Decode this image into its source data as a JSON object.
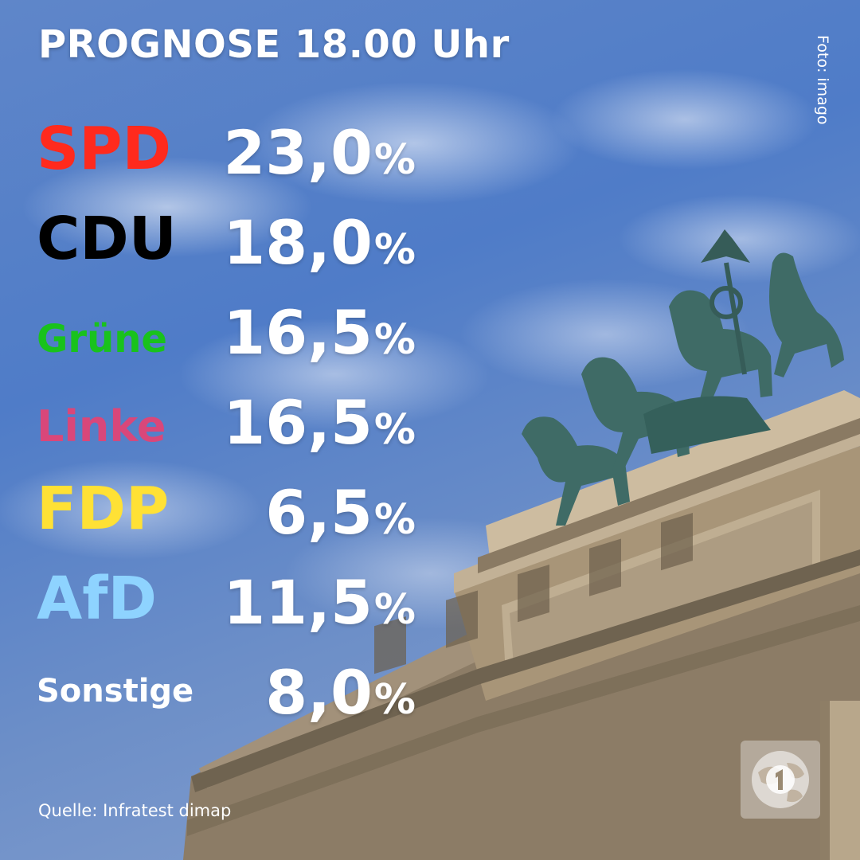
{
  "header": {
    "title": "PROGNOSE 18.00 Uhr",
    "photo_credit": "Foto: imago"
  },
  "results": [
    {
      "party": "SPD",
      "value": "23,0",
      "unit": "%",
      "color": "#ff2a1d"
    },
    {
      "party": "CDU",
      "value": "18,0",
      "unit": "%",
      "color": "#000000"
    },
    {
      "party": "Grüne",
      "value": "16,5",
      "unit": "%",
      "color": "#19c21c"
    },
    {
      "party": "Linke",
      "value": "16,5",
      "unit": "%",
      "color": "#d9477a"
    },
    {
      "party": "FDP",
      "value": "6,5",
      "unit": "%",
      "color": "#ffe135"
    },
    {
      "party": "AfD",
      "value": "11,5",
      "unit": "%",
      "color": "#8ed3ff"
    },
    {
      "party": "Sonstige",
      "value": "8,0",
      "unit": "%",
      "color": "#ffffff"
    }
  ],
  "footer": {
    "source": "Quelle: Infratest dimap",
    "logo_icon": "ard-globe-logo-icon"
  }
}
